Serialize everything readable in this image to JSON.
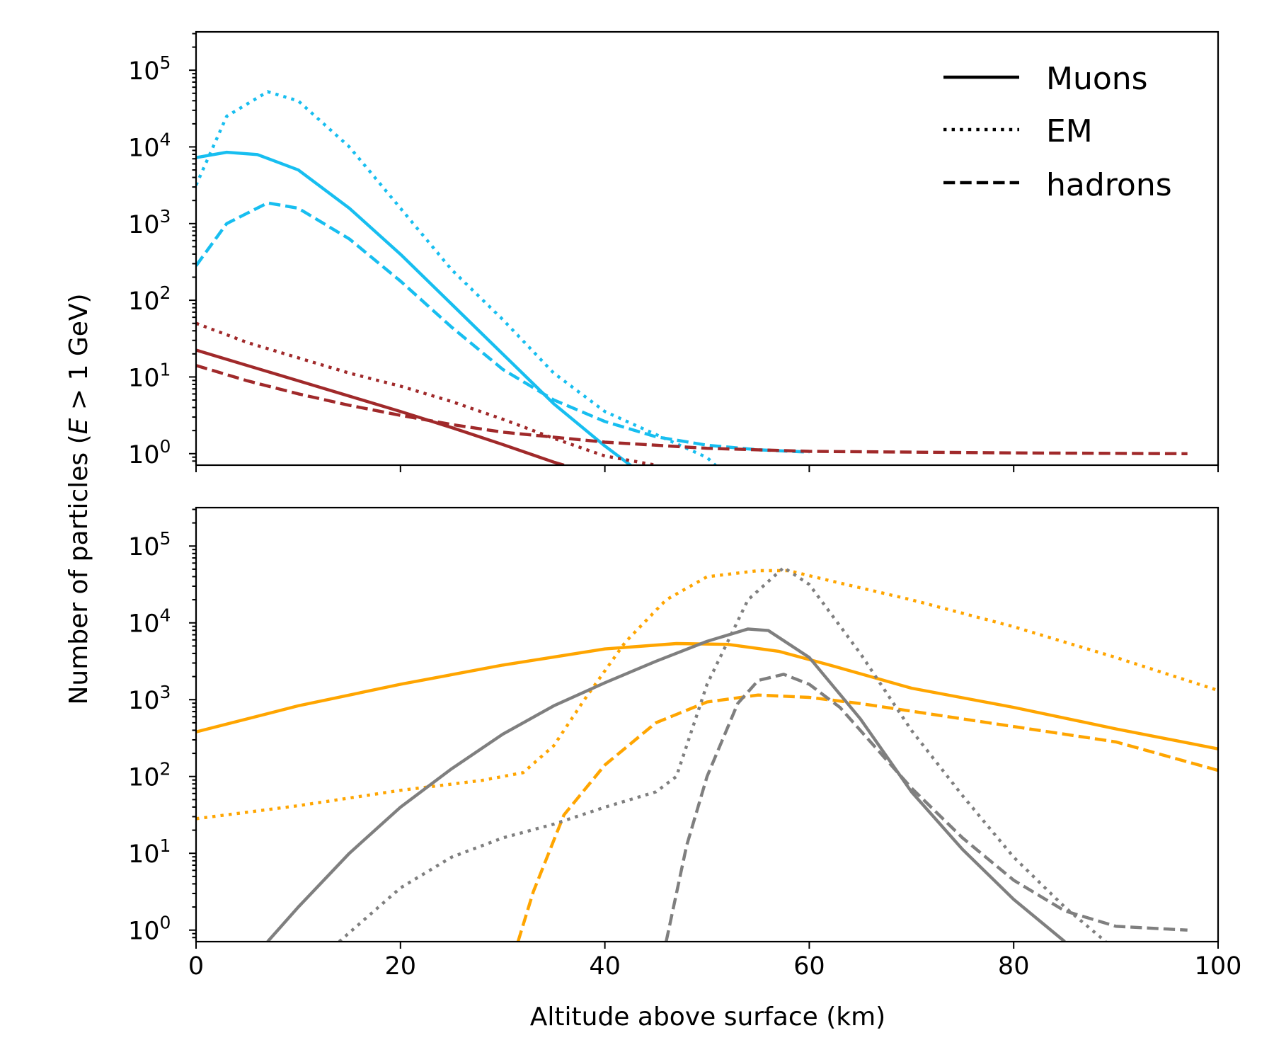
{
  "figure": {
    "ylabel_text": "Number of particles (",
    "ylabel_var": "E",
    "ylabel_rest": " > 1 GeV)",
    "xlabel": "Altitude above surface (km)"
  },
  "legend": [
    {
      "label": "Muons",
      "dash": "solid"
    },
    {
      "label": "EM",
      "dash": "dotted"
    },
    {
      "label": "hadrons",
      "dash": "dashed"
    }
  ],
  "colors": {
    "cyan": "#17bef0",
    "darkred": "#a0292a",
    "orange": "#ffa500",
    "gray": "#7f7f7f"
  },
  "chart_data": [
    {
      "type": "line",
      "panel": "top",
      "xlabel": "",
      "ylabel": "Number of particles (E > 1 GeV)",
      "xlim": [
        0,
        100
      ],
      "ylim_log10": [
        -0.15,
        5.5
      ],
      "yscale": "log",
      "xticks": [
        0,
        20,
        40,
        60,
        80,
        100
      ],
      "yticks_log10": [
        0,
        1,
        2,
        3,
        4,
        5
      ],
      "legend_position": "top-right",
      "series": [
        {
          "name": "Muons",
          "color": "cyan",
          "dash": "solid",
          "x": [
            0,
            3,
            6,
            10,
            15,
            20,
            25,
            30,
            35,
            40,
            45
          ],
          "log10_y": [
            3.86,
            3.93,
            3.9,
            3.7,
            3.2,
            2.6,
            1.95,
            1.3,
            0.65,
            0.1,
            -0.4
          ]
        },
        {
          "name": "EM",
          "color": "cyan",
          "dash": "dotted",
          "x": [
            0,
            3,
            7,
            10,
            15,
            20,
            25,
            30,
            35,
            40,
            45,
            50,
            52
          ],
          "log10_y": [
            3.5,
            4.4,
            4.72,
            4.6,
            4.0,
            3.2,
            2.4,
            1.75,
            1.05,
            0.55,
            0.25,
            -0.05,
            -0.3
          ]
        },
        {
          "name": "hadrons",
          "color": "cyan",
          "dash": "dashed",
          "x": [
            0,
            3,
            7,
            10,
            15,
            20,
            25,
            30,
            35,
            40,
            45,
            50,
            55,
            60
          ],
          "log10_y": [
            2.45,
            3.0,
            3.27,
            3.2,
            2.8,
            2.25,
            1.65,
            1.1,
            0.7,
            0.42,
            0.22,
            0.11,
            0.05,
            0.02
          ]
        },
        {
          "name": "Muons",
          "color": "darkred",
          "dash": "solid",
          "x": [
            0,
            5,
            10,
            15,
            20,
            25,
            30,
            35,
            36
          ],
          "log10_y": [
            1.35,
            1.15,
            0.95,
            0.75,
            0.55,
            0.34,
            0.12,
            -0.11,
            -0.15
          ]
        },
        {
          "name": "EM",
          "color": "darkred",
          "dash": "dotted",
          "x": [
            0,
            5,
            10,
            15,
            20,
            25,
            30,
            35,
            40,
            45
          ],
          "log10_y": [
            1.7,
            1.45,
            1.25,
            1.05,
            0.88,
            0.68,
            0.45,
            0.2,
            -0.03,
            -0.15
          ]
        },
        {
          "name": "hadrons",
          "color": "darkred",
          "dash": "dashed",
          "x": [
            0,
            5,
            10,
            15,
            20,
            25,
            30,
            40,
            50,
            60,
            70,
            80,
            97
          ],
          "log10_y": [
            1.15,
            0.95,
            0.78,
            0.63,
            0.5,
            0.38,
            0.28,
            0.15,
            0.07,
            0.03,
            0.02,
            0.01,
            0.0
          ]
        }
      ]
    },
    {
      "type": "line",
      "panel": "bottom",
      "xlabel": "Altitude above surface (km)",
      "ylabel": "Number of particles (E > 1 GeV)",
      "xlim": [
        0,
        100
      ],
      "ylim_log10": [
        -0.15,
        5.5
      ],
      "yscale": "log",
      "xticks": [
        0,
        20,
        40,
        60,
        80,
        100
      ],
      "yticks_log10": [
        0,
        1,
        2,
        3,
        4,
        5
      ],
      "series": [
        {
          "name": "Muons",
          "color": "orange",
          "dash": "solid",
          "x": [
            0,
            10,
            20,
            30,
            40,
            47,
            52,
            57,
            62,
            70,
            80,
            90,
            100
          ],
          "log10_y": [
            2.58,
            2.92,
            3.2,
            3.45,
            3.66,
            3.73,
            3.72,
            3.63,
            3.45,
            3.15,
            2.9,
            2.62,
            2.36
          ]
        },
        {
          "name": "EM",
          "color": "orange",
          "dash": "dotted",
          "x": [
            0,
            10,
            20,
            28,
            32,
            35,
            38,
            42,
            46,
            50,
            55,
            58,
            62,
            70,
            80,
            90,
            100
          ],
          "log10_y": [
            1.45,
            1.62,
            1.82,
            1.95,
            2.05,
            2.4,
            3.0,
            3.75,
            4.3,
            4.6,
            4.68,
            4.68,
            4.55,
            4.3,
            3.95,
            3.55,
            3.12
          ]
        },
        {
          "name": "hadrons",
          "color": "orange",
          "dash": "dashed",
          "x": [
            31.5,
            33,
            36,
            40,
            45,
            50,
            55,
            60,
            65,
            70,
            80,
            90,
            100
          ],
          "log10_y": [
            -0.15,
            0.5,
            1.5,
            2.15,
            2.7,
            2.97,
            3.06,
            3.03,
            2.95,
            2.85,
            2.65,
            2.45,
            2.08
          ]
        },
        {
          "name": "Muons",
          "color": "gray",
          "dash": "solid",
          "x": [
            7,
            10,
            15,
            20,
            25,
            30,
            35,
            40,
            45,
            50,
            54,
            56,
            60,
            65,
            70,
            75,
            80,
            85
          ],
          "log10_y": [
            -0.15,
            0.3,
            1.0,
            1.6,
            2.1,
            2.55,
            2.92,
            3.22,
            3.5,
            3.76,
            3.92,
            3.9,
            3.55,
            2.75,
            1.8,
            1.05,
            0.4,
            -0.15
          ]
        },
        {
          "name": "EM",
          "color": "gray",
          "dash": "dotted",
          "x": [
            14,
            20,
            25,
            30,
            35,
            40,
            45,
            47,
            50,
            54,
            57.5,
            60,
            65,
            70,
            75,
            80,
            85,
            89
          ],
          "log10_y": [
            -0.15,
            0.55,
            0.95,
            1.2,
            1.38,
            1.6,
            1.8,
            2.0,
            3.2,
            4.3,
            4.72,
            4.5,
            3.6,
            2.6,
            1.75,
            0.95,
            0.3,
            -0.15
          ]
        },
        {
          "name": "hadrons",
          "color": "gray",
          "dash": "dashed",
          "x": [
            46,
            48,
            50,
            53,
            55,
            57.5,
            60,
            63,
            66,
            70,
            75,
            80,
            85,
            90,
            97
          ],
          "log10_y": [
            -0.15,
            1.1,
            2.0,
            2.95,
            3.25,
            3.33,
            3.2,
            2.9,
            2.45,
            1.85,
            1.2,
            0.65,
            0.25,
            0.05,
            0.0
          ]
        }
      ]
    }
  ]
}
